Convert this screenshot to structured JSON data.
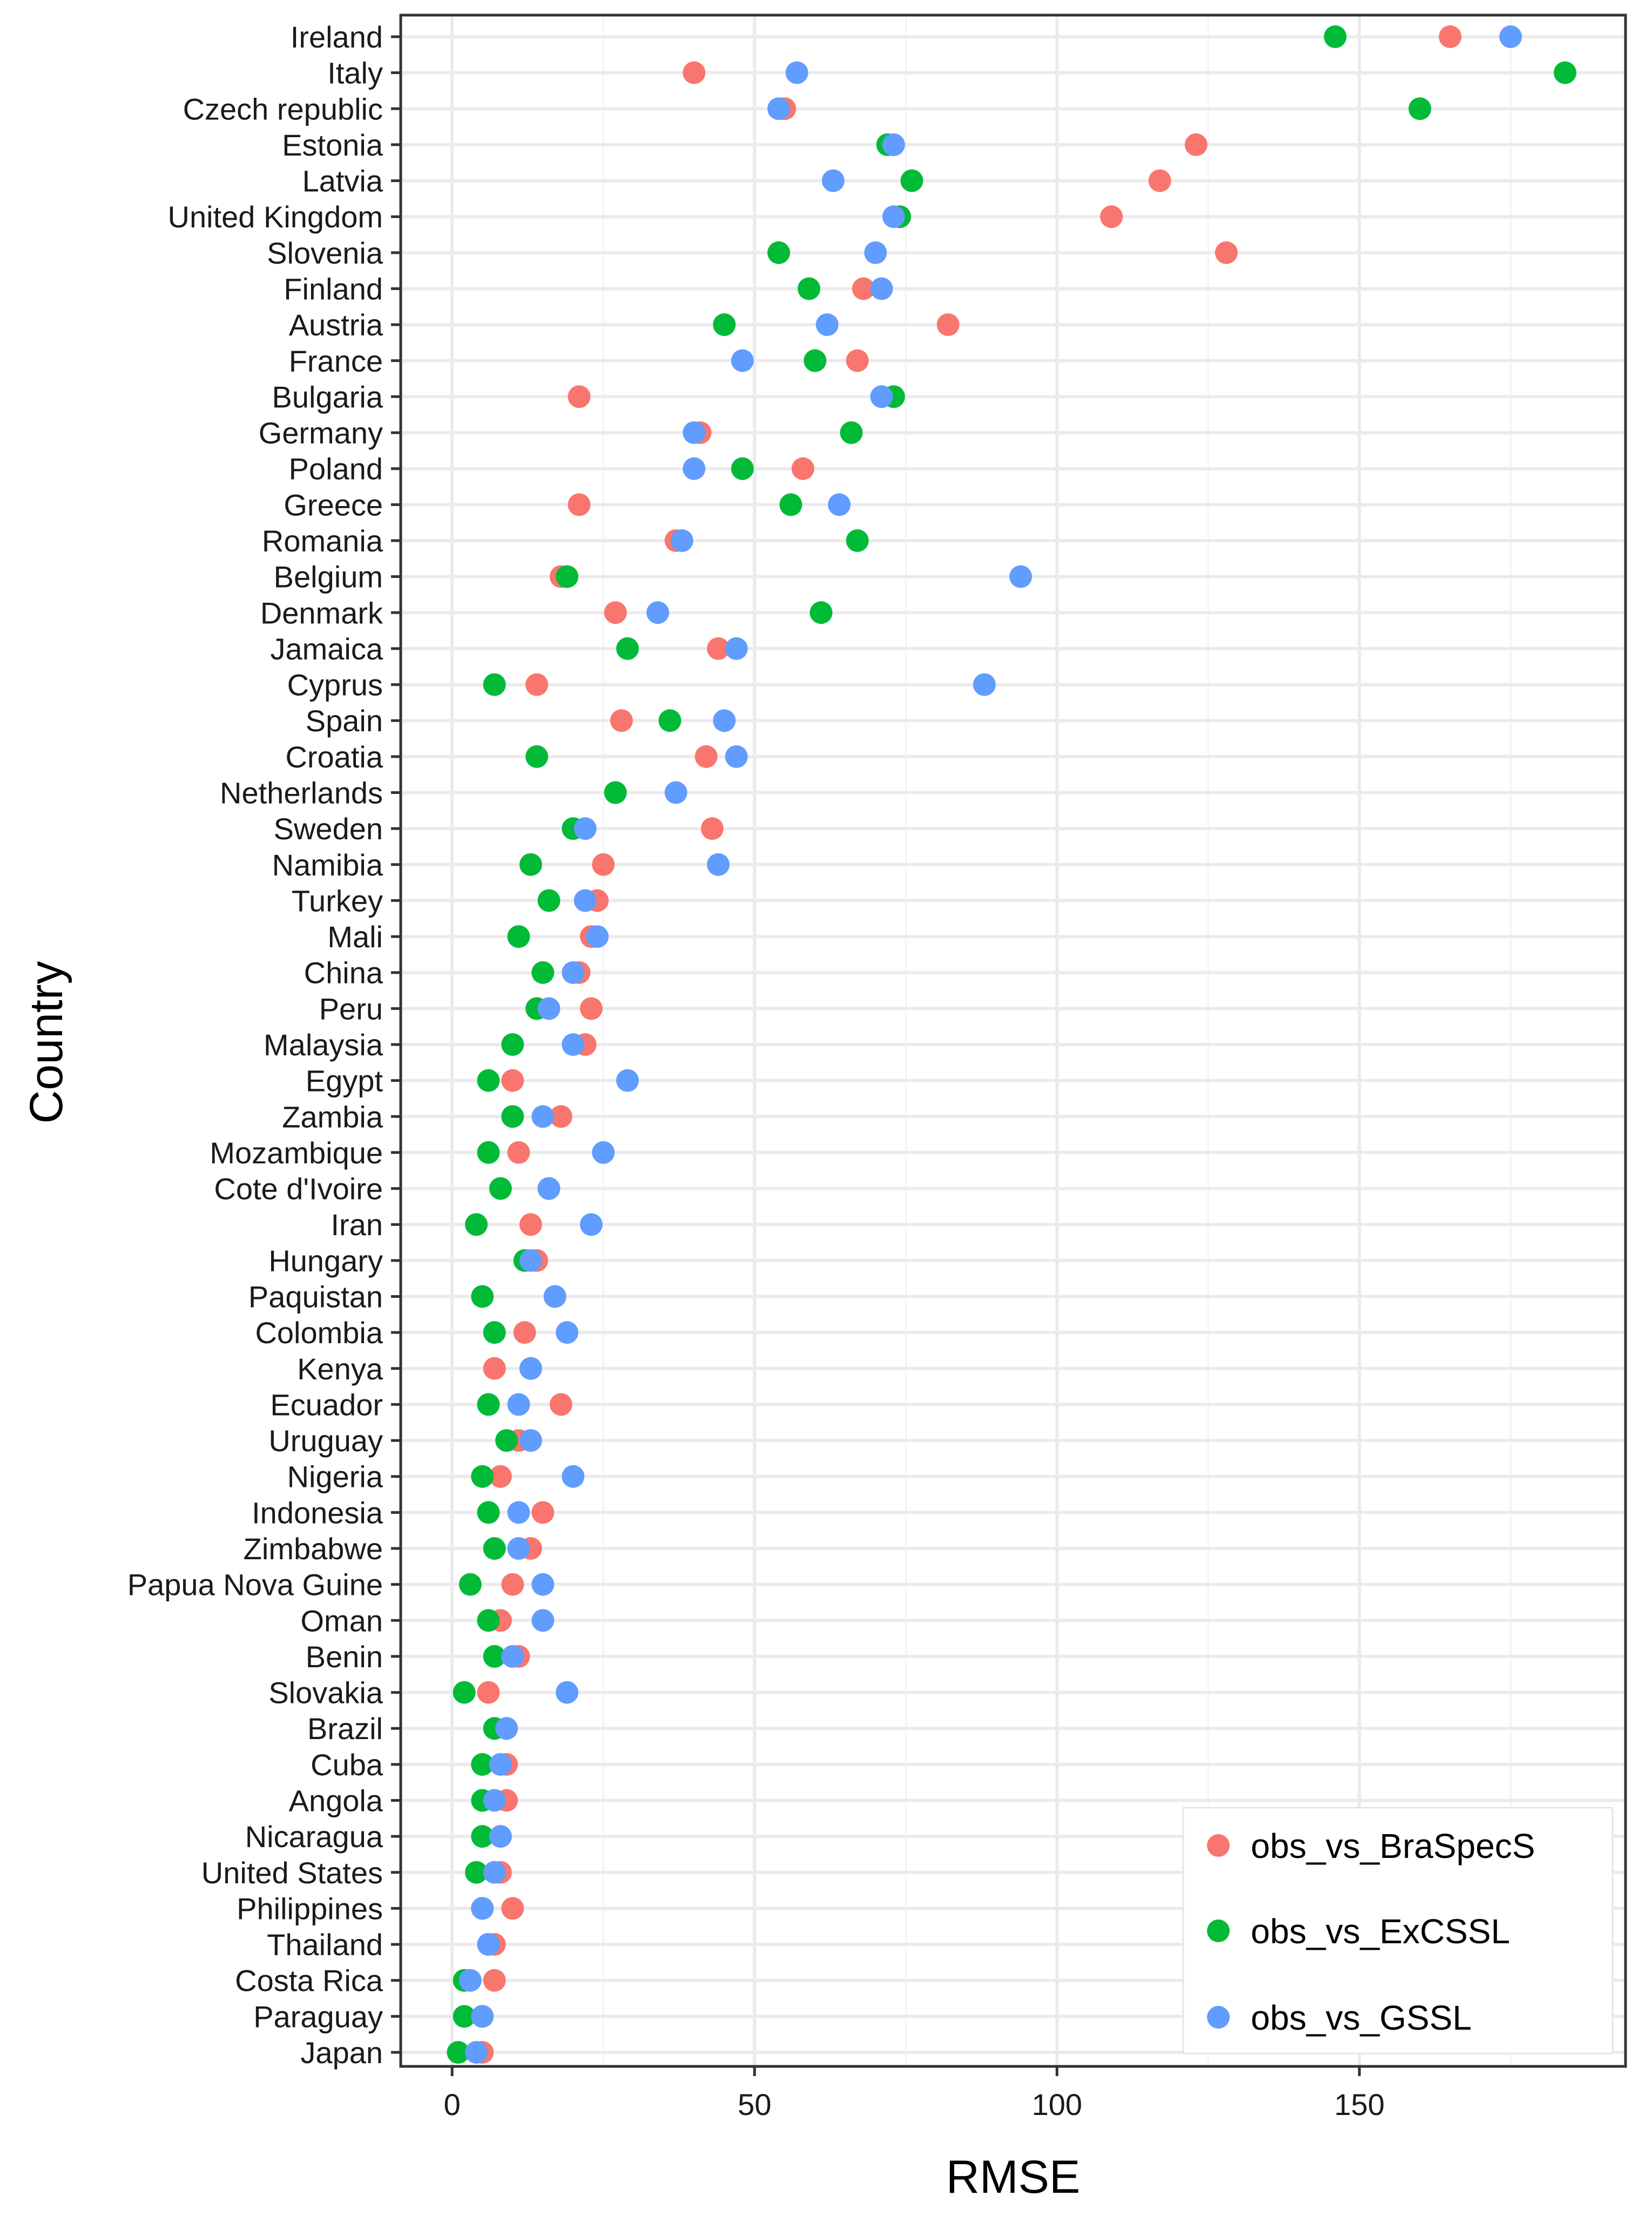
{
  "chart_data": {
    "type": "scatter",
    "title": "",
    "xlabel": "RMSE",
    "ylabel": "Country",
    "xlim": [
      -8.5,
      194
    ],
    "xticks": [
      0,
      50,
      100,
      150
    ],
    "grid": true,
    "legend_position": "bottom-right",
    "categories": [
      "Ireland",
      "Italy",
      "Czech republic",
      "Estonia",
      "Latvia",
      "United Kingdom",
      "Slovenia",
      "Finland",
      "Austria",
      "France",
      "Bulgaria",
      "Germany",
      "Poland",
      "Greece",
      "Romania",
      "Belgium",
      "Denmark",
      "Jamaica",
      "Cyprus",
      "Spain",
      "Croatia",
      "Netherlands",
      "Sweden",
      "Namibia",
      "Turkey",
      "Mali",
      "China",
      "Peru",
      "Malaysia",
      "Egypt",
      "Zambia",
      "Mozambique",
      "Cote d'Ivoire",
      "Iran",
      "Hungary",
      "Paquistan",
      "Colombia",
      "Kenya",
      "Ecuador",
      "Uruguay",
      "Nigeria",
      "Indonesia",
      "Zimbabwe",
      "Papua Nova Guine",
      "Oman",
      "Benin",
      "Slovakia",
      "Brazil",
      "Cuba",
      "Angola",
      "Nicaragua",
      "United States",
      "Philippines",
      "Thailand",
      "Costa Rica",
      "Paraguay",
      "Japan"
    ],
    "series": [
      {
        "name": "obs_vs_BraSpecS",
        "color": "#F8766D",
        "values": [
          165,
          40,
          55,
          123,
          117,
          109,
          128,
          68,
          82,
          67,
          21,
          41,
          58,
          21,
          37,
          18,
          27,
          44,
          14,
          28,
          42,
          27,
          43,
          25,
          24,
          23,
          21,
          23,
          22,
          10,
          18,
          11,
          16,
          13,
          14,
          17,
          12,
          7,
          18,
          11,
          8,
          15,
          13,
          10,
          8,
          11,
          6,
          9,
          9,
          9,
          8,
          8,
          10,
          7,
          7,
          5,
          5
        ]
      },
      {
        "name": "obs_vs_ExCSSL",
        "color": "#00BA38",
        "values": [
          146,
          184,
          160,
          72,
          76,
          74,
          54,
          59,
          45,
          60,
          73,
          66,
          48,
          56,
          67,
          19,
          61,
          29,
          7,
          36,
          14,
          27,
          20,
          13,
          16,
          11,
          15,
          14,
          10,
          6,
          10,
          6,
          8,
          4,
          12,
          5,
          7,
          13,
          6,
          9,
          5,
          6,
          7,
          3,
          6,
          7,
          2,
          7,
          5,
          5,
          5,
          4,
          5,
          6,
          2,
          2,
          1
        ]
      },
      {
        "name": "obs_vs_GSSL",
        "color": "#619CFF",
        "values": [
          175,
          57,
          54,
          73,
          63,
          73,
          70,
          71,
          62,
          48,
          71,
          40,
          40,
          64,
          38,
          94,
          34,
          47,
          88,
          45,
          47,
          37,
          22,
          44,
          22,
          24,
          20,
          16,
          20,
          29,
          15,
          25,
          16,
          23,
          13,
          17,
          19,
          13,
          11,
          13,
          20,
          11,
          11,
          15,
          15,
          10,
          19,
          9,
          8,
          7,
          8,
          7,
          5,
          6,
          3,
          5,
          4
        ]
      }
    ]
  }
}
